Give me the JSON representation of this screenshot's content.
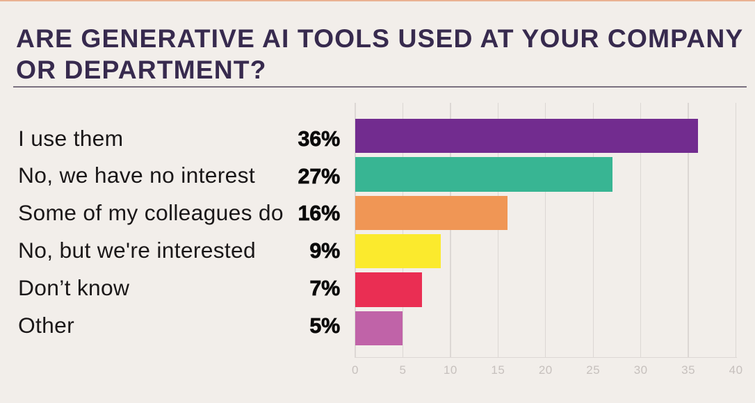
{
  "page": {
    "background_color": "#f2eeea",
    "top_strip_color": "#eab292"
  },
  "title": {
    "text": "ARE GENERATIVE AI TOOLS USED AT YOUR COMPANY OR DEPARTMENT?",
    "color": "#372a4e",
    "divider_color": "#7a7080"
  },
  "chart_data": {
    "type": "bar",
    "orientation": "horizontal",
    "title": "ARE GENERATIVE AI TOOLS USED AT YOUR COMPANY OR DEPARTMENT?",
    "categories": [
      "I use them",
      "No, we have no interest",
      "Some of my colleagues do",
      "No, but we're interested",
      "Don’t know",
      "Other"
    ],
    "values": [
      36,
      27,
      16,
      9,
      7,
      5
    ],
    "value_labels": [
      "36%",
      "27%",
      "16%",
      "9%",
      "7%",
      "5%"
    ],
    "bar_colors": [
      "#722c8f",
      "#38b593",
      "#f09655",
      "#fbea2d",
      "#ea2e53",
      "#c063a8"
    ],
    "xlim": [
      0,
      40
    ],
    "x_ticks": [
      "0",
      "5",
      "10",
      "15",
      "20",
      "25",
      "30",
      "35",
      "40"
    ],
    "grid": true,
    "legend": false,
    "label_color": "#1a1718",
    "value_color": "#0b0a0a",
    "grid_color": "#dcd7d4",
    "tick_color": "#c6c0bd"
  }
}
